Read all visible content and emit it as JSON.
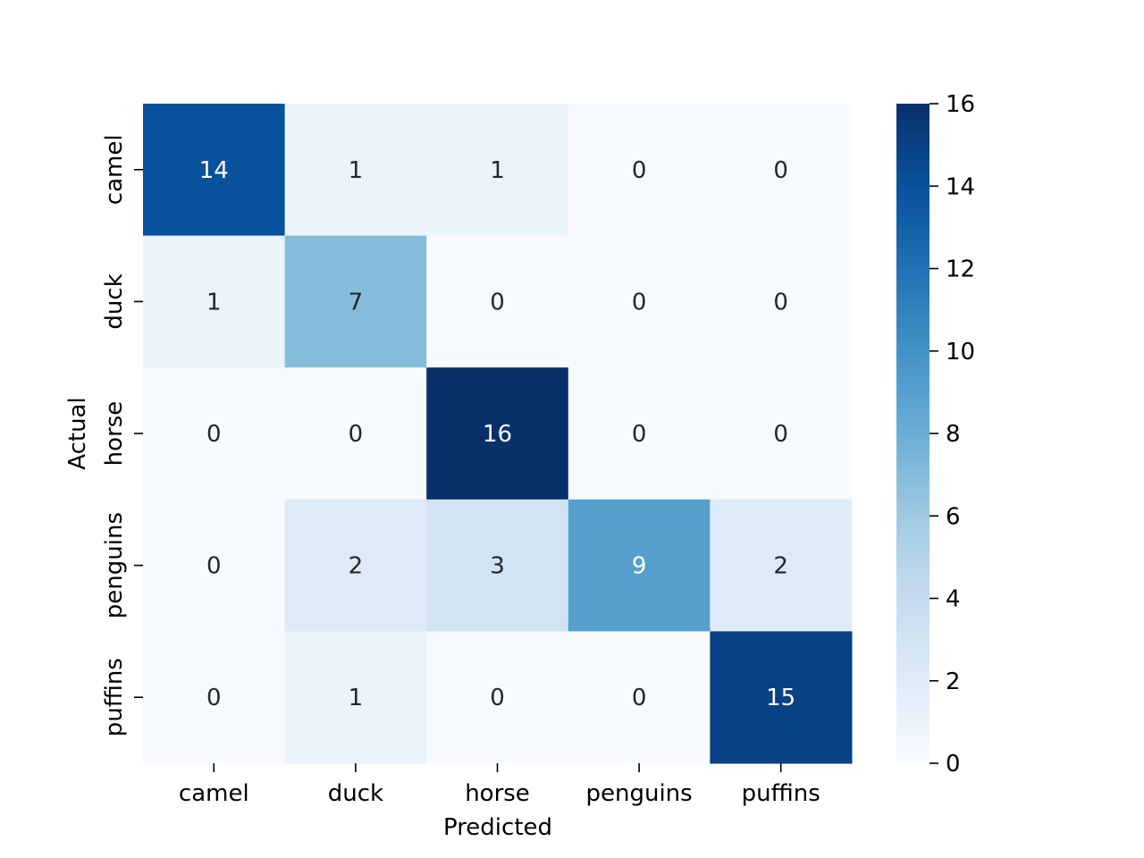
{
  "chart_data": {
    "type": "heatmap",
    "title": "",
    "xlabel": "Predicted",
    "ylabel": "Actual",
    "x_categories": [
      "camel",
      "duck",
      "horse",
      "penguins",
      "puffins"
    ],
    "y_categories": [
      "camel",
      "duck",
      "horse",
      "penguins",
      "puffins"
    ],
    "values": [
      [
        14,
        1,
        1,
        0,
        0
      ],
      [
        1,
        7,
        0,
        0,
        0
      ],
      [
        0,
        0,
        16,
        0,
        0
      ],
      [
        0,
        2,
        3,
        9,
        2
      ],
      [
        0,
        1,
        0,
        0,
        15
      ]
    ],
    "colorscale": "Blues",
    "vmin": 0,
    "vmax": 16,
    "colorbar_ticks": [
      0,
      2,
      4,
      6,
      8,
      10,
      12,
      14,
      16
    ],
    "annotations": true
  }
}
